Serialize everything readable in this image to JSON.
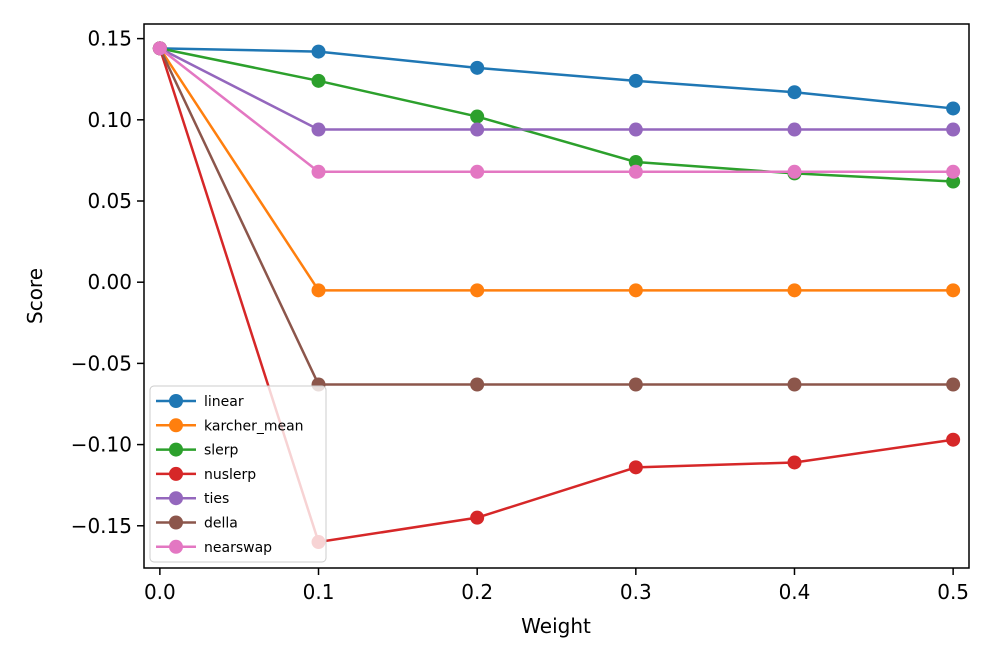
{
  "chart_data": {
    "type": "line",
    "title": "",
    "xlabel": "Weight",
    "ylabel": "Score",
    "xlim": [
      -0.01,
      0.51
    ],
    "ylim": [
      -0.176,
      0.159
    ],
    "xticks": [
      0.0,
      0.1,
      0.2,
      0.3,
      0.4,
      0.5
    ],
    "xtick_labels": [
      "0.0",
      "0.1",
      "0.2",
      "0.3",
      "0.4",
      "0.5"
    ],
    "yticks": [
      0.15,
      0.1,
      0.05,
      0.0,
      -0.05,
      -0.1,
      -0.15
    ],
    "ytick_labels": [
      "0.15",
      "0.10",
      "0.05",
      "0.00",
      "−0.05",
      "−0.10",
      "−0.15"
    ],
    "grid": false,
    "legend_position": "lower-left",
    "x": [
      0.0,
      0.1,
      0.2,
      0.3,
      0.4,
      0.5
    ],
    "series": [
      {
        "name": "linear",
        "color": "#1f77b4",
        "values": [
          0.144,
          0.142,
          0.132,
          0.124,
          0.117,
          0.107
        ]
      },
      {
        "name": "karcher_mean",
        "color": "#ff7f0e",
        "values": [
          0.144,
          -0.005,
          -0.005,
          -0.005,
          -0.005,
          -0.005
        ]
      },
      {
        "name": "slerp",
        "color": "#2ca02c",
        "values": [
          0.144,
          0.124,
          0.102,
          0.074,
          0.067,
          0.062
        ]
      },
      {
        "name": "nuslerp",
        "color": "#d62728",
        "values": [
          0.144,
          -0.16,
          -0.145,
          -0.114,
          -0.111,
          -0.097
        ]
      },
      {
        "name": "ties",
        "color": "#9467bd",
        "values": [
          0.144,
          0.094,
          0.094,
          0.094,
          0.094,
          0.094
        ]
      },
      {
        "name": "della",
        "color": "#8c564b",
        "values": [
          0.144,
          -0.063,
          -0.063,
          -0.063,
          -0.063,
          -0.063
        ]
      },
      {
        "name": "nearswap",
        "color": "#e377c2",
        "values": [
          0.144,
          0.068,
          0.068,
          0.068,
          0.068,
          0.068
        ]
      }
    ]
  }
}
